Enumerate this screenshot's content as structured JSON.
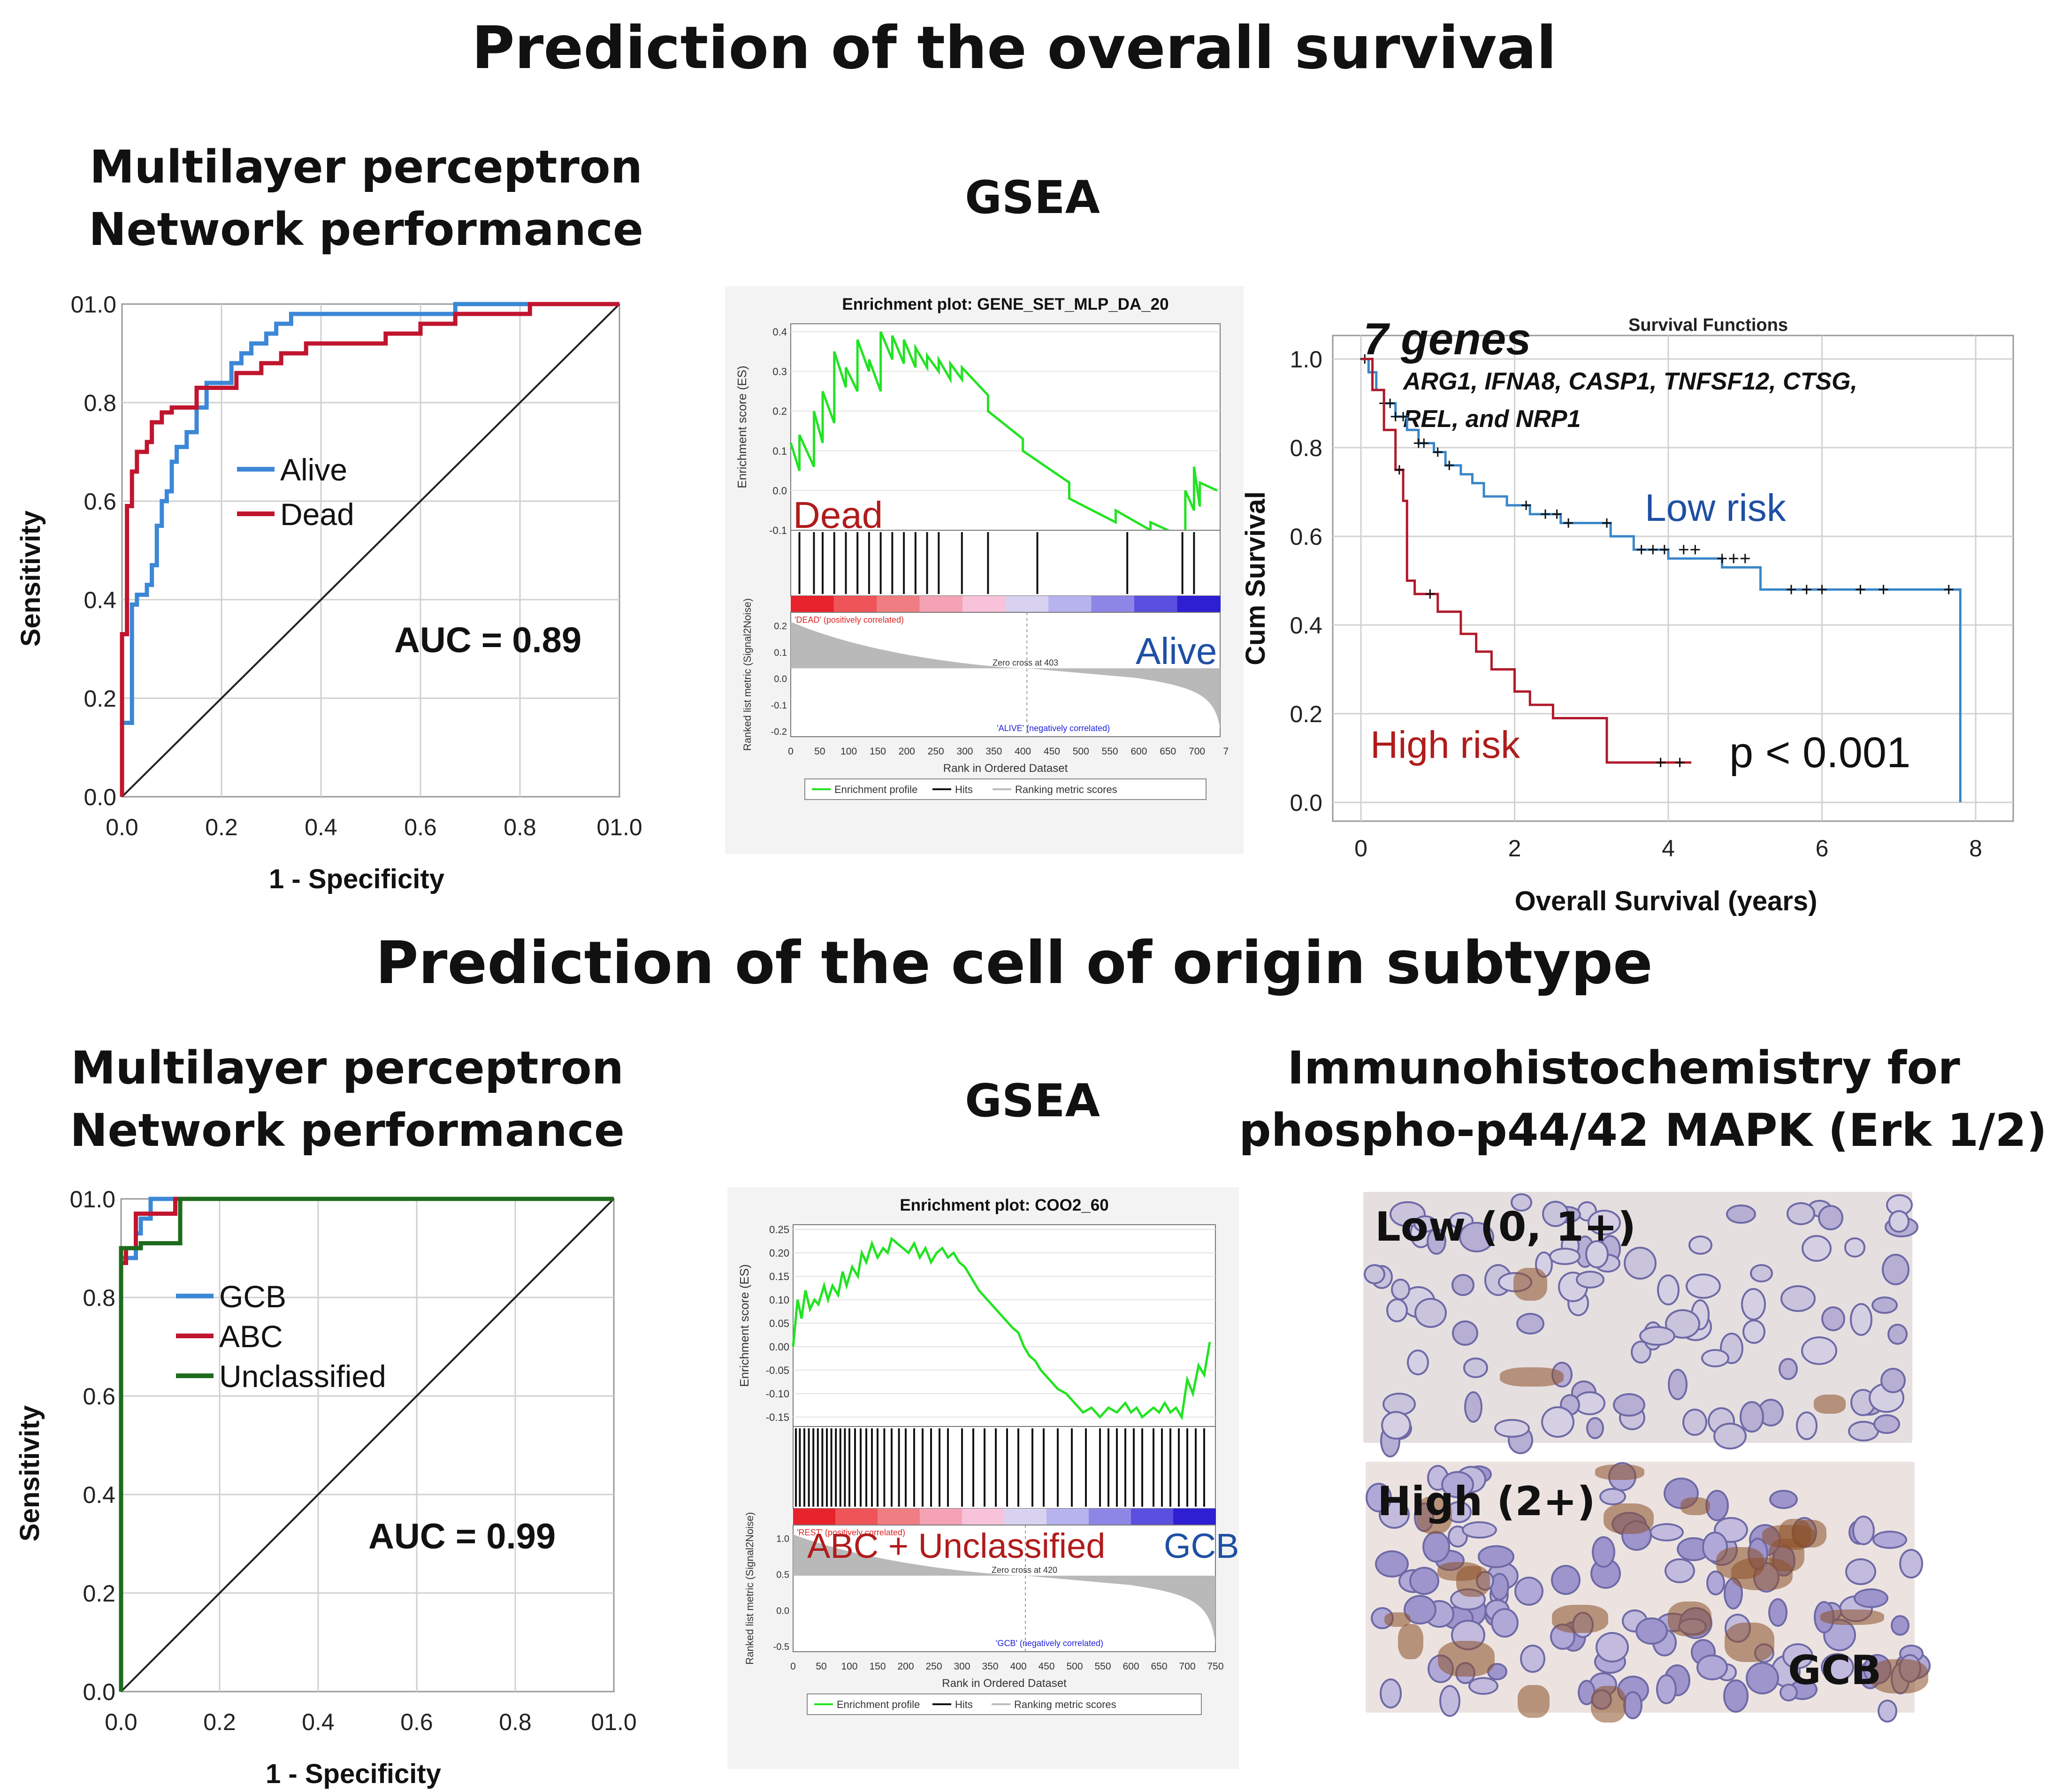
{
  "section_titles": {
    "overall_survival": "Prediction of the overall survival",
    "cell_origin": "Prediction of the cell of origin subtype"
  },
  "panels": {
    "roc_os_title": [
      "Multilayer perceptron",
      "Network performance"
    ],
    "gsea_os_title": "GSEA",
    "roc_coo_title": [
      "Multilayer perceptron",
      "Network performance"
    ],
    "gsea_coo_title": "GSEA",
    "ihc_title": [
      "Immunohistochemistry for",
      "phospho-p44/42 MAPK (Erk 1/2)"
    ],
    "ihc_low_label": "Low (0, 1+)",
    "ihc_high_label": "High (2+)",
    "ihc_gcb_label": "GCB"
  },
  "colors": {
    "blue": "#3c87d6",
    "red": "#c0152f",
    "green": "#1e6b1e",
    "gsea_green": "#22e322",
    "km_blue": "#3a86c8",
    "km_red": "#b0192a",
    "dark_red_text": "#b01c1c",
    "dark_blue_text": "#1e4fa3"
  },
  "chart_data": [
    {
      "id": "roc_os",
      "type": "line",
      "title": "",
      "xlabel": "1 - Specificity",
      "ylabel": "Sensitivity",
      "xlim": [
        0,
        1
      ],
      "ylim": [
        0,
        1
      ],
      "xticks": [
        "0.0",
        "0.2",
        "0.4",
        "0.6",
        "0.8",
        "01.0"
      ],
      "yticks": [
        "0.0",
        "0.2",
        "0.4",
        "0.6",
        "0.8",
        "01.0"
      ],
      "annotation": "AUC = 0.89",
      "series": [
        {
          "name": "Alive",
          "color": "#3c87d6",
          "x": [
            0,
            0,
            0.02,
            0.02,
            0.03,
            0.03,
            0.05,
            0.05,
            0.06,
            0.06,
            0.07,
            0.07,
            0.08,
            0.08,
            0.09,
            0.09,
            0.1,
            0.1,
            0.11,
            0.11,
            0.13,
            0.13,
            0.15,
            0.15,
            0.17,
            0.17,
            0.22,
            0.22,
            0.24,
            0.24,
            0.26,
            0.26,
            0.29,
            0.29,
            0.31,
            0.31,
            0.34,
            0.34,
            0.43,
            0.43,
            0.5,
            0.5,
            0.67,
            0.67,
            0.85,
            0.85,
            1
          ],
          "y": [
            0,
            0.15,
            0.15,
            0.39,
            0.39,
            0.41,
            0.41,
            0.43,
            0.43,
            0.47,
            0.47,
            0.55,
            0.55,
            0.6,
            0.6,
            0.62,
            0.62,
            0.68,
            0.68,
            0.71,
            0.71,
            0.74,
            0.74,
            0.79,
            0.79,
            0.84,
            0.84,
            0.88,
            0.88,
            0.9,
            0.9,
            0.92,
            0.92,
            0.94,
            0.94,
            0.96,
            0.96,
            0.98,
            0.98,
            0.98,
            0.98,
            0.98,
            0.98,
            1,
            1,
            1,
            1
          ]
        },
        {
          "name": "Dead",
          "color": "#c0152f",
          "x": [
            0,
            0,
            0.01,
            0.01,
            0.02,
            0.02,
            0.03,
            0.03,
            0.05,
            0.05,
            0.06,
            0.06,
            0.08,
            0.08,
            0.1,
            0.1,
            0.15,
            0.15,
            0.23,
            0.23,
            0.28,
            0.28,
            0.32,
            0.32,
            0.37,
            0.37,
            0.53,
            0.53,
            0.6,
            0.6,
            0.67,
            0.67,
            0.82,
            0.82,
            1
          ],
          "y": [
            0,
            0.33,
            0.33,
            0.59,
            0.59,
            0.66,
            0.66,
            0.7,
            0.7,
            0.72,
            0.72,
            0.76,
            0.76,
            0.78,
            0.78,
            0.79,
            0.79,
            0.83,
            0.83,
            0.86,
            0.86,
            0.88,
            0.88,
            0.9,
            0.9,
            0.92,
            0.92,
            0.94,
            0.94,
            0.96,
            0.96,
            0.98,
            0.98,
            1,
            1
          ]
        }
      ],
      "reference_line": [
        [
          0,
          0
        ],
        [
          1,
          1
        ]
      ]
    },
    {
      "id": "gsea_os",
      "type": "line",
      "title": "Enrichment plot: GENE_SET_MLP_DA_20",
      "ylabel": "Enrichment score (ES)",
      "ylabel2": "Ranked list metric (Signal2Noise)",
      "xlabel": "Rank in Ordered Dataset",
      "es_ticks": [
        "0.4",
        "0.3",
        "0.2",
        "0.1",
        "0.0",
        "-0.1"
      ],
      "metric_ticks": [
        "0.2",
        "0.1",
        "0.0",
        "-0.1",
        "-0.2"
      ],
      "xticks": [
        "0",
        "50",
        "100",
        "150",
        "200",
        "250",
        "300",
        "350",
        "400",
        "450",
        "500",
        "550",
        "600",
        "650",
        "700",
        "7"
      ],
      "es_ylim": [
        -0.1,
        0.42
      ],
      "xlim": [
        0,
        740
      ],
      "rank_x": [
        0,
        15,
        15,
        40,
        40,
        55,
        55,
        75,
        75,
        95,
        95,
        115,
        115,
        135,
        135,
        155,
        155,
        175,
        175,
        195,
        195,
        215,
        215,
        235,
        235,
        255,
        255,
        275,
        275,
        295,
        295,
        340,
        340,
        400,
        400,
        480,
        480,
        560,
        560,
        620,
        620,
        680,
        680,
        695,
        695,
        705,
        705,
        735
      ],
      "es_y": [
        0.12,
        0.05,
        0.14,
        0.06,
        0.2,
        0.12,
        0.25,
        0.17,
        0.35,
        0.26,
        0.31,
        0.25,
        0.38,
        0.3,
        0.33,
        0.25,
        0.4,
        0.33,
        0.39,
        0.32,
        0.38,
        0.31,
        0.36,
        0.31,
        0.34,
        0.3,
        0.33,
        0.28,
        0.32,
        0.28,
        0.31,
        0.24,
        0.2,
        0.13,
        0.1,
        0.02,
        -0.02,
        -0.08,
        -0.05,
        -0.1,
        -0.08,
        -0.12,
        0.0,
        -0.05,
        0.06,
        -0.04,
        0.02,
        0.0
      ],
      "hits": [
        15,
        40,
        55,
        75,
        95,
        115,
        135,
        155,
        175,
        195,
        215,
        235,
        255,
        295,
        340,
        425,
        580,
        675,
        695
      ],
      "annotation_top": "Dead",
      "annotation_bottom": "Alive",
      "pos_label": "'DEAD' (positively correlated)",
      "neg_label": "'ALIVE' (negatively correlated)",
      "zero_cross": "Zero cross at 403",
      "legend": [
        "Enrichment profile",
        "Hits",
        "Ranking metric scores"
      ]
    },
    {
      "id": "km_os",
      "type": "line",
      "title": "Survival Functions",
      "xlabel": "Overall Survival (years)",
      "ylabel": "Cum Survival",
      "xlim": [
        0,
        8
      ],
      "ylim": [
        0,
        1
      ],
      "xticks": [
        "0",
        "2",
        "4",
        "6",
        "8"
      ],
      "yticks": [
        "0.0",
        "0.2",
        "0.4",
        "0.6",
        "0.8",
        "1.0"
      ],
      "headline": "7 genes",
      "genes_line1": "ARG1, IFNA8, CASP1, TNFSF12, CTSG,",
      "genes_line2": "REL, and NRP1",
      "p_value": "p < 0.001",
      "series": [
        {
          "name": "Low risk",
          "color": "#3a86c8",
          "x": [
            0,
            0.1,
            0.1,
            0.2,
            0.2,
            0.3,
            0.3,
            0.45,
            0.45,
            0.6,
            0.6,
            0.75,
            0.75,
            0.95,
            0.95,
            1.1,
            1.1,
            1.3,
            1.3,
            1.45,
            1.45,
            1.6,
            1.6,
            1.9,
            1.9,
            2.2,
            2.2,
            2.6,
            2.6,
            3.25,
            3.25,
            3.55,
            3.55,
            4.0,
            4.0,
            4.7,
            4.7,
            5.2,
            5.2,
            7.8,
            7.8
          ],
          "y": [
            1.0,
            1.0,
            0.97,
            0.97,
            0.93,
            0.93,
            0.9,
            0.9,
            0.87,
            0.87,
            0.84,
            0.84,
            0.81,
            0.81,
            0.79,
            0.79,
            0.76,
            0.76,
            0.74,
            0.74,
            0.72,
            0.72,
            0.69,
            0.69,
            0.67,
            0.67,
            0.65,
            0.65,
            0.63,
            0.63,
            0.6,
            0.6,
            0.57,
            0.57,
            0.55,
            0.55,
            0.53,
            0.53,
            0.48,
            0.48,
            0.0
          ],
          "censors": [
            [
              0.05,
              1.0
            ],
            [
              0.3,
              0.9
            ],
            [
              0.38,
              0.9
            ],
            [
              0.45,
              0.87
            ],
            [
              0.55,
              0.87
            ],
            [
              0.75,
              0.81
            ],
            [
              0.82,
              0.81
            ],
            [
              1.0,
              0.79
            ],
            [
              1.15,
              0.76
            ],
            [
              2.15,
              0.67
            ],
            [
              2.4,
              0.65
            ],
            [
              2.55,
              0.65
            ],
            [
              2.7,
              0.63
            ],
            [
              3.2,
              0.63
            ],
            [
              3.65,
              0.57
            ],
            [
              3.8,
              0.57
            ],
            [
              3.95,
              0.57
            ],
            [
              4.2,
              0.57
            ],
            [
              4.35,
              0.57
            ],
            [
              4.7,
              0.55
            ],
            [
              4.85,
              0.55
            ],
            [
              5.0,
              0.55
            ],
            [
              5.6,
              0.48
            ],
            [
              5.8,
              0.48
            ],
            [
              6.0,
              0.48
            ],
            [
              6.5,
              0.48
            ],
            [
              6.8,
              0.48
            ],
            [
              7.65,
              0.48
            ]
          ]
        },
        {
          "name": "High risk",
          "color": "#b0192a",
          "x": [
            0,
            0.15,
            0.15,
            0.3,
            0.3,
            0.45,
            0.45,
            0.55,
            0.55,
            0.6,
            0.6,
            0.7,
            0.7,
            1.0,
            1.0,
            1.3,
            1.3,
            1.5,
            1.5,
            1.7,
            1.7,
            2.0,
            2.0,
            2.2,
            2.2,
            2.5,
            2.5,
            3.2,
            3.2,
            4.3
          ],
          "y": [
            1.0,
            1.0,
            0.93,
            0.93,
            0.84,
            0.84,
            0.75,
            0.75,
            0.68,
            0.68,
            0.5,
            0.5,
            0.47,
            0.47,
            0.43,
            0.43,
            0.38,
            0.38,
            0.34,
            0.34,
            0.3,
            0.3,
            0.25,
            0.25,
            0.22,
            0.22,
            0.19,
            0.19,
            0.09,
            0.09
          ],
          "censors": [
            [
              0.5,
              0.75
            ],
            [
              0.9,
              0.47
            ],
            [
              3.9,
              0.09
            ],
            [
              4.15,
              0.09
            ]
          ]
        }
      ]
    },
    {
      "id": "roc_coo",
      "type": "line",
      "xlabel": "1 - Specificity",
      "ylabel": "Sensitivity",
      "xlim": [
        0,
        1
      ],
      "ylim": [
        0,
        1
      ],
      "xticks": [
        "0.0",
        "0.2",
        "0.4",
        "0.6",
        "0.8",
        "01.0"
      ],
      "yticks": [
        "0.0",
        "0.2",
        "0.4",
        "0.6",
        "0.8",
        "01.0"
      ],
      "annotation": "AUC = 0.99",
      "series": [
        {
          "name": "GCB",
          "color": "#3c87d6",
          "x": [
            0,
            0,
            0.03,
            0.03,
            0.04,
            0.04,
            0.06,
            0.06,
            1
          ],
          "y": [
            0,
            0.88,
            0.88,
            0.93,
            0.93,
            0.96,
            0.96,
            1.0,
            1.0
          ]
        },
        {
          "name": "ABC",
          "color": "#c0152f",
          "x": [
            0,
            0,
            0.01,
            0.01,
            0.03,
            0.03,
            0.11,
            0.11,
            1
          ],
          "y": [
            0,
            0.87,
            0.87,
            0.9,
            0.9,
            0.97,
            0.97,
            1.0,
            1.0
          ]
        },
        {
          "name": "Unclassified",
          "color": "#1e6b1e",
          "x": [
            0,
            0,
            0.04,
            0.04,
            0.12,
            0.12,
            1
          ],
          "y": [
            0,
            0.9,
            0.9,
            0.91,
            0.91,
            1.0,
            1.0
          ]
        }
      ],
      "reference_line": [
        [
          0,
          0
        ],
        [
          1,
          1
        ]
      ]
    },
    {
      "id": "gsea_coo",
      "type": "line",
      "title": "Enrichment plot: COO2_60",
      "ylabel": "Enrichment score (ES)",
      "ylabel2": "Ranked list metric (Signal2Noise)",
      "xlabel": "Rank in Ordered Dataset",
      "es_ticks": [
        "0.25",
        "0.20",
        "0.15",
        "0.10",
        "0.05",
        "0.00",
        "-0.05",
        "-0.10",
        "-0.15"
      ],
      "metric_ticks": [
        "1.0",
        "0.5",
        "0.0",
        "-0.5"
      ],
      "xticks": [
        "0",
        "50",
        "100",
        "150",
        "200",
        "250",
        "300",
        "350",
        "400",
        "450",
        "500",
        "550",
        "600",
        "650",
        "700",
        "750"
      ],
      "es_ylim": [
        -0.17,
        0.26
      ],
      "xlim": [
        0,
        750
      ],
      "rank_x": [
        0,
        8,
        15,
        22,
        30,
        38,
        45,
        55,
        62,
        70,
        80,
        88,
        95,
        105,
        115,
        122,
        130,
        140,
        150,
        160,
        168,
        175,
        185,
        195,
        205,
        215,
        225,
        235,
        245,
        255,
        265,
        275,
        285,
        295,
        305,
        315,
        330,
        345,
        360,
        375,
        390,
        400,
        410,
        420,
        430,
        440,
        455,
        470,
        485,
        500,
        515,
        530,
        545,
        560,
        575,
        590,
        600,
        610,
        620,
        630,
        640,
        650,
        660,
        670,
        680,
        690,
        700,
        710,
        720,
        730,
        740
      ],
      "es_y": [
        0.0,
        0.1,
        0.06,
        0.12,
        0.08,
        0.1,
        0.09,
        0.13,
        0.1,
        0.13,
        0.11,
        0.16,
        0.13,
        0.17,
        0.15,
        0.2,
        0.18,
        0.22,
        0.19,
        0.21,
        0.2,
        0.23,
        0.22,
        0.21,
        0.2,
        0.22,
        0.19,
        0.21,
        0.18,
        0.2,
        0.21,
        0.19,
        0.2,
        0.18,
        0.17,
        0.15,
        0.12,
        0.1,
        0.08,
        0.06,
        0.04,
        0.03,
        0.0,
        -0.02,
        -0.03,
        -0.05,
        -0.07,
        -0.09,
        -0.1,
        -0.12,
        -0.14,
        -0.13,
        -0.15,
        -0.13,
        -0.14,
        -0.12,
        -0.14,
        -0.13,
        -0.15,
        -0.14,
        -0.13,
        -0.14,
        -0.12,
        -0.14,
        -0.13,
        -0.15,
        -0.07,
        -0.1,
        -0.04,
        -0.06,
        0.01
      ],
      "hits": [
        5,
        12,
        20,
        28,
        36,
        44,
        52,
        60,
        68,
        76,
        84,
        92,
        100,
        110,
        120,
        130,
        140,
        150,
        162,
        175,
        188,
        200,
        215,
        230,
        245,
        260,
        275,
        300,
        320,
        340,
        360,
        380,
        400,
        425,
        445,
        470,
        495,
        520,
        545,
        560,
        575,
        590,
        605,
        620,
        640,
        655,
        670,
        685,
        700,
        715,
        730
      ],
      "annotation_left": "ABC + Unclassified",
      "annotation_right": "GCB",
      "pos_label": "'REST' (positively correlated)",
      "neg_label": "'GCB' (negatively correlated)",
      "zero_cross": "Zero cross at 420",
      "legend": [
        "Enrichment profile",
        "Hits",
        "Ranking metric scores"
      ]
    }
  ]
}
